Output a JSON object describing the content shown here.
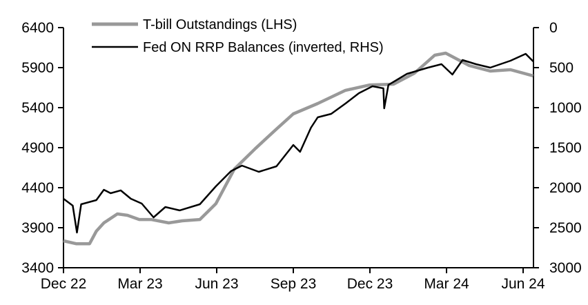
{
  "chart_data": {
    "type": "line",
    "title": "",
    "xlabel": "",
    "ylabel_left": "",
    "ylabel_right": "",
    "x_unit": "days since Dec 22",
    "x_ticks": [
      {
        "day": 0,
        "label": "Dec 22"
      },
      {
        "day": 91,
        "label": "Mar 23"
      },
      {
        "day": 182,
        "label": "Jun 23"
      },
      {
        "day": 273,
        "label": "Sep 23"
      },
      {
        "day": 364,
        "label": "Dec 23"
      },
      {
        "day": 455,
        "label": "Mar 24"
      },
      {
        "day": 546,
        "label": "Jun 24"
      }
    ],
    "xlim": [
      0,
      558
    ],
    "y_left": {
      "ylim": [
        3400,
        6400
      ],
      "ticks": [
        "6400",
        "5900",
        "5400",
        "4900",
        "4400",
        "3900",
        "3400"
      ]
    },
    "y_right": {
      "ylim": [
        0,
        3000
      ],
      "inverted": true,
      "ticks": [
        "0",
        "500",
        "1000",
        "1500",
        "2000",
        "2500",
        "3000"
      ]
    },
    "grid": false,
    "legend_position": "top-left",
    "series": [
      {
        "name": "T-bill Outstandings (LHS)",
        "axis": "left",
        "color": "#999999",
        "x": [
          0,
          15,
          31,
          39,
          48,
          64,
          76,
          90,
          104,
          125,
          141,
          162,
          181,
          203,
          228,
          253,
          273,
          302,
          335,
          364,
          392,
          417,
          441,
          454,
          482,
          507,
          531,
          558
        ],
        "y": [
          3736,
          3700,
          3700,
          3857,
          3960,
          4072,
          4055,
          4003,
          4003,
          3960,
          3986,
          4003,
          4200,
          4633,
          4890,
          5133,
          5322,
          5452,
          5616,
          5684,
          5693,
          5831,
          6055,
          6081,
          5926,
          5857,
          5874,
          5797
        ]
      },
      {
        "name": "Fed ON RRP Balances (inverted, RHS)",
        "axis": "right",
        "color": "#000000",
        "x": [
          0,
          11,
          16,
          21,
          39,
          48,
          56,
          68,
          80,
          93,
          107,
          121,
          138,
          162,
          181,
          199,
          212,
          232,
          253,
          273,
          281,
          294,
          302,
          318,
          335,
          351,
          367,
          380,
          381,
          386,
          408,
          433,
          449,
          462,
          474,
          490,
          507,
          531,
          549,
          558
        ],
        "y": [
          2138,
          2224,
          2560,
          2207,
          2155,
          2026,
          2069,
          2034,
          2138,
          2198,
          2371,
          2241,
          2284,
          2207,
          1983,
          1793,
          1724,
          1802,
          1733,
          1466,
          1552,
          1250,
          1121,
          1078,
          948,
          819,
          733,
          759,
          1009,
          716,
          578,
          500,
          457,
          586,
          405,
          457,
          500,
          414,
          328,
          422
        ]
      }
    ]
  }
}
